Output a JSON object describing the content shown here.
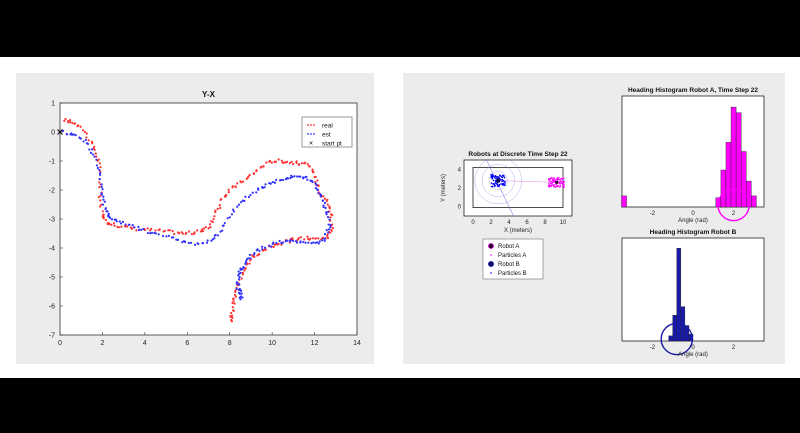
{
  "chart_data": [
    {
      "type": "scatter",
      "title": "Y-X",
      "xlim": [
        0,
        14
      ],
      "ylim": [
        -7,
        1
      ],
      "xticks": [
        "0",
        "2",
        "4",
        "6",
        "8",
        "10",
        "12",
        "14"
      ],
      "yticks": [
        "1",
        "0",
        "-1",
        "-2",
        "-3",
        "-4",
        "-5",
        "-6",
        "-7"
      ],
      "legend": {
        "position": "top-right",
        "entries": [
          "real",
          "est",
          "start pt"
        ]
      },
      "series": [
        {
          "name": "real",
          "color": "#ff3030",
          "marker": "dot",
          "x": [
            0.2,
            0.6,
            1.1,
            1.5,
            1.8,
            1.9,
            1.9,
            2.0,
            2.2,
            2.6,
            3.2,
            3.9,
            4.6,
            5.3,
            5.9,
            6.5,
            7.0,
            7.3,
            7.6,
            8.0,
            8.5,
            9.0,
            9.5,
            10.0,
            10.5,
            11.0,
            11.5,
            11.9,
            12.1,
            12.3,
            12.6,
            12.8,
            12.8,
            12.6,
            12.2,
            11.7,
            11.1,
            10.6,
            10.1,
            9.6,
            9.1,
            8.8,
            8.5,
            8.3,
            8.2,
            8.1,
            8.1
          ],
          "y": [
            0.4,
            0.35,
            0.1,
            -0.4,
            -0.9,
            -1.6,
            -2.3,
            -2.9,
            -3.1,
            -3.2,
            -3.3,
            -3.35,
            -3.4,
            -3.45,
            -3.5,
            -3.45,
            -3.3,
            -2.9,
            -2.4,
            -2.0,
            -1.75,
            -1.5,
            -1.2,
            -1.0,
            -1.0,
            -1.05,
            -1.1,
            -1.3,
            -1.7,
            -2.1,
            -2.4,
            -2.8,
            -3.3,
            -3.6,
            -3.7,
            -3.65,
            -3.7,
            -3.8,
            -3.9,
            -4.1,
            -4.3,
            -4.6,
            -5.0,
            -5.5,
            -5.9,
            -6.3,
            -6.6
          ]
        },
        {
          "name": "est",
          "color": "#3030ff",
          "marker": "dot",
          "x": [
            0.2,
            0.7,
            1.2,
            1.6,
            1.9,
            2.0,
            2.1,
            2.3,
            2.7,
            3.3,
            4.0,
            4.7,
            5.5,
            6.2,
            6.9,
            7.4,
            7.8,
            8.3,
            8.9,
            9.5,
            10.0,
            10.5,
            11.0,
            11.5,
            11.9,
            12.2,
            12.4,
            12.6,
            12.7,
            12.5,
            12.0,
            11.4,
            10.8,
            10.2,
            9.6,
            9.1,
            8.7,
            8.5,
            8.4,
            8.4,
            8.5,
            8.6
          ],
          "y": [
            0.0,
            -0.1,
            -0.3,
            -0.8,
            -1.4,
            -2.1,
            -2.6,
            -2.9,
            -3.1,
            -3.2,
            -3.4,
            -3.55,
            -3.7,
            -3.85,
            -3.8,
            -3.6,
            -3.1,
            -2.6,
            -2.2,
            -1.9,
            -1.75,
            -1.6,
            -1.5,
            -1.55,
            -1.7,
            -2.0,
            -2.4,
            -2.8,
            -3.3,
            -3.7,
            -3.85,
            -3.8,
            -3.75,
            -3.8,
            -4.0,
            -4.2,
            -4.5,
            -4.8,
            -5.1,
            -5.4,
            -5.6,
            -5.8
          ]
        },
        {
          "name": "start pt",
          "color": "#000000",
          "marker": "x",
          "x": [
            0
          ],
          "y": [
            0
          ]
        }
      ]
    },
    {
      "type": "scatter",
      "title": "Robots at Discrete Time Step 22",
      "xlabel": "X (meters)",
      "ylabel": "Y (meters)",
      "xlim": [
        -1,
        11
      ],
      "ylim": [
        -1,
        5
      ],
      "xticks": [
        "0",
        "2",
        "4",
        "6",
        "8",
        "10"
      ],
      "yticks": [
        "4",
        "2",
        "0"
      ],
      "legend": {
        "position": "below",
        "entries": [
          "Robot A",
          "Particles A",
          "Robot B",
          "Particles B"
        ]
      },
      "robots": [
        {
          "name": "Robot A",
          "x": 9.3,
          "y": 2.6,
          "color": "#ff00ff"
        },
        {
          "name": "Robot B",
          "x": 2.8,
          "y": 2.8,
          "color": "#0000cc"
        }
      ],
      "colors": {
        "particles_a": "#ff00ff",
        "particles_b": "#0000ff"
      }
    },
    {
      "type": "bar",
      "title": "Heading Histogram Robot A, Time Step 22",
      "xlabel": "Angle (rad)",
      "xlim": [
        -3.5,
        3.5
      ],
      "xticks": [
        "-2",
        "0",
        "2"
      ],
      "color": "#ff00ff",
      "bin_width": 0.25,
      "x": [
        -3.4,
        1.25,
        1.5,
        1.75,
        2.0,
        2.25,
        2.5,
        2.75,
        3.0
      ],
      "values": [
        12,
        10,
        40,
        70,
        108,
        102,
        60,
        28,
        12
      ],
      "ylim": [
        0,
        120
      ],
      "highlight_angle": 2.0
    },
    {
      "type": "bar",
      "title": "Heading Histogram Robot B",
      "xlabel": "Angle (rad)",
      "xlim": [
        -3.5,
        3.5
      ],
      "xticks": [
        "-2",
        "0",
        "2"
      ],
      "color": "#1a1aa8",
      "bin_width": 0.2,
      "x": [
        -1.1,
        -0.9,
        -0.7,
        -0.5,
        -0.3,
        -0.1
      ],
      "values": [
        6,
        30,
        108,
        40,
        18,
        8
      ],
      "ylim": [
        0,
        120
      ],
      "highlight_angle": -0.8
    }
  ]
}
